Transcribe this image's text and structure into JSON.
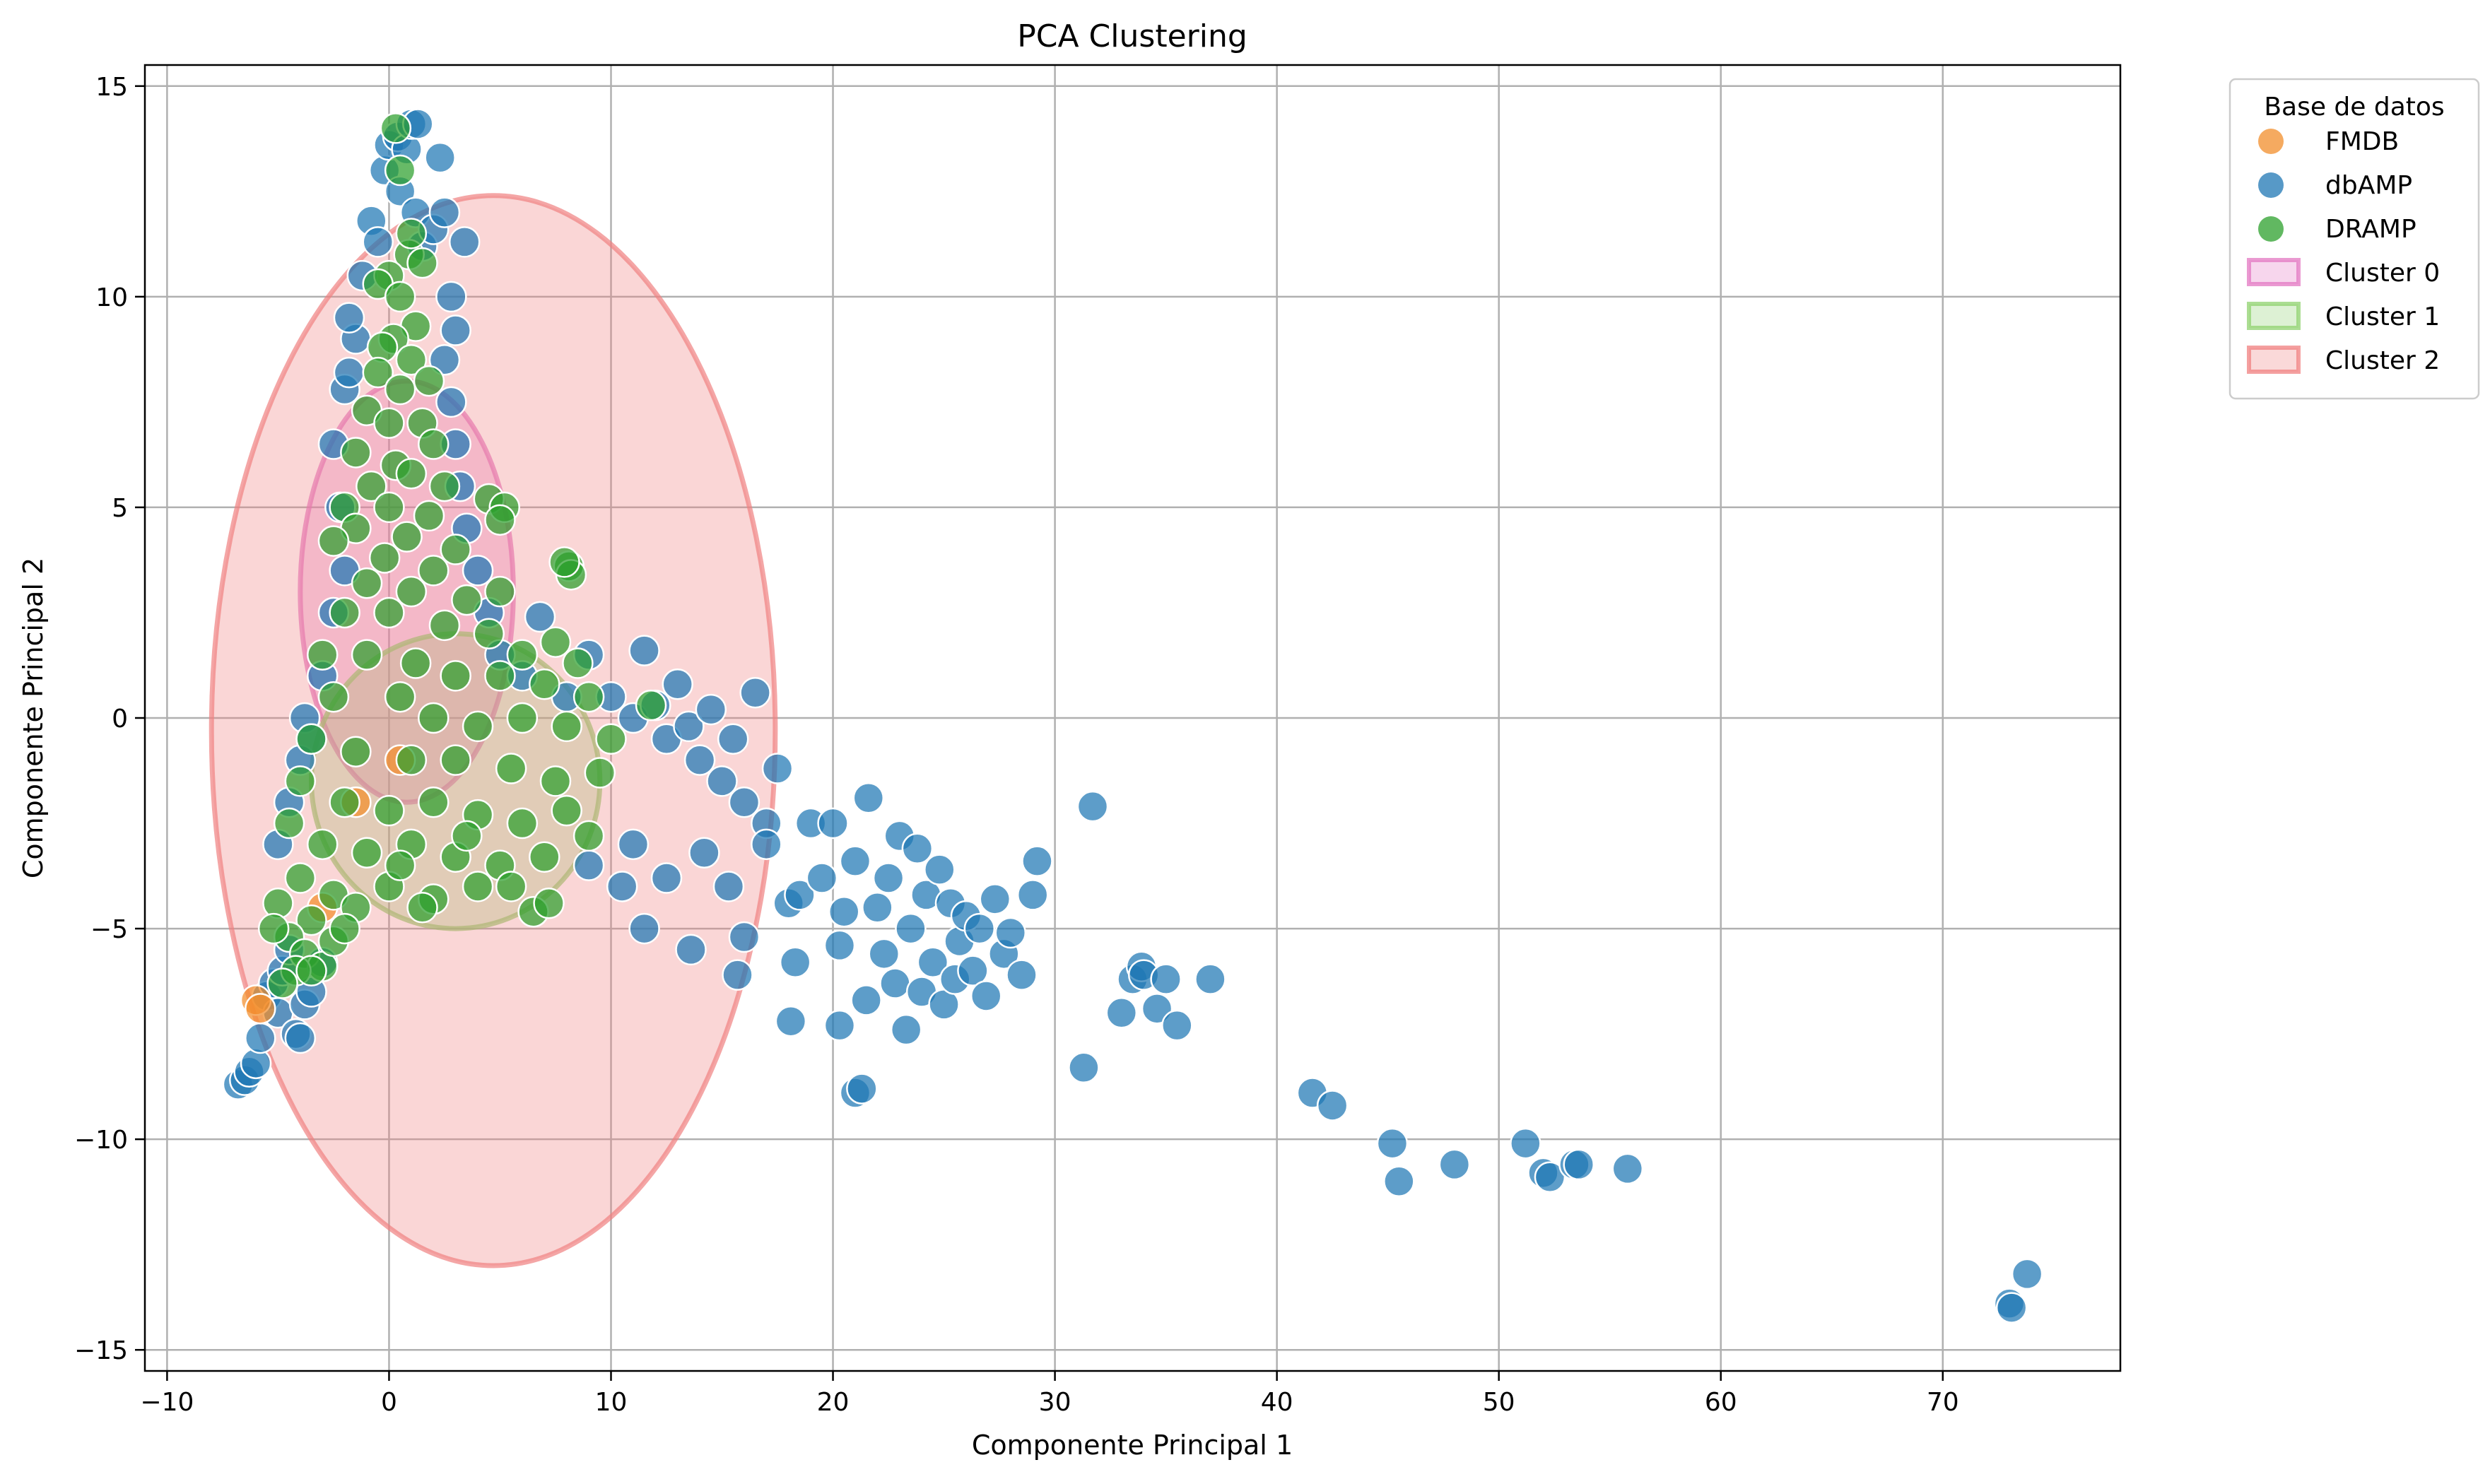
{
  "chart_data": {
    "type": "scatter",
    "title": "PCA Clustering",
    "xlabel": "Componente Principal 1",
    "ylabel": "Componente Principal 2",
    "xlim": [
      -11,
      78
    ],
    "ylim": [
      -15.5,
      15.5
    ],
    "xticks": [
      -10,
      0,
      10,
      20,
      30,
      40,
      50,
      60,
      70
    ],
    "yticks": [
      -15,
      -10,
      -5,
      0,
      5,
      10,
      15
    ],
    "grid": true,
    "legend": {
      "title": "Base de datos",
      "placement": "outside-top-right",
      "entries": [
        {
          "label": "FMDB",
          "kind": "point",
          "color": "#f28e2b"
        },
        {
          "label": "dbAMP",
          "kind": "point",
          "color": "#1f77b4"
        },
        {
          "label": "DRAMP",
          "kind": "point",
          "color": "#2ca02c"
        },
        {
          "label": "Cluster 0",
          "kind": "patch",
          "color": "#e377c2"
        },
        {
          "label": "Cluster 1",
          "kind": "patch",
          "color": "#8fd16f"
        },
        {
          "label": "Cluster 2",
          "kind": "patch",
          "color": "#f08080"
        }
      ]
    },
    "clusters": [
      {
        "name": "Cluster 0",
        "color": "#e377c2",
        "cx": 0.8,
        "cy": 3.0,
        "rx": 4.8,
        "ry": 5.0
      },
      {
        "name": "Cluster 1",
        "color": "#8fd16f",
        "cx": 3.0,
        "cy": -1.5,
        "rx": 6.5,
        "ry": 3.5
      },
      {
        "name": "Cluster 2",
        "color": "#f08080",
        "cx": 4.7,
        "cy": -0.3,
        "rx": 12.7,
        "ry": 12.7
      }
    ],
    "series": [
      {
        "name": "dbAMP",
        "color": "#1f77b4",
        "points": [
          [
            -6.8,
            -8.7
          ],
          [
            -6.5,
            -8.6
          ],
          [
            -6.3,
            -8.4
          ],
          [
            -6.0,
            -8.2
          ],
          [
            -5.8,
            -7.6
          ],
          [
            -5.5,
            -6.6
          ],
          [
            -5.2,
            -6.3
          ],
          [
            -5.0,
            -7.0
          ],
          [
            -4.8,
            -6.0
          ],
          [
            -4.5,
            -5.5
          ],
          [
            -4.2,
            -7.5
          ],
          [
            -4.0,
            -7.6
          ],
          [
            -3.8,
            -6.8
          ],
          [
            -3.5,
            -6.5
          ],
          [
            -3.0,
            -5.8
          ],
          [
            -5.0,
            -3.0
          ],
          [
            -4.5,
            -2.0
          ],
          [
            -4.0,
            -1.0
          ],
          [
            -3.8,
            0.0
          ],
          [
            -3.5,
            -0.5
          ],
          [
            -3.0,
            1.0
          ],
          [
            -2.5,
            2.5
          ],
          [
            -2.0,
            3.5
          ],
          [
            -2.2,
            5.0
          ],
          [
            -2.5,
            6.5
          ],
          [
            -2.0,
            7.8
          ],
          [
            -1.8,
            8.2
          ],
          [
            -1.5,
            9.0
          ],
          [
            -1.8,
            9.5
          ],
          [
            -1.2,
            10.5
          ],
          [
            -0.8,
            11.8
          ],
          [
            -0.5,
            11.3
          ],
          [
            -0.2,
            13.0
          ],
          [
            0.0,
            13.6
          ],
          [
            0.4,
            13.8
          ],
          [
            0.8,
            13.5
          ],
          [
            1.0,
            14.1
          ],
          [
            1.3,
            14.1
          ],
          [
            0.5,
            12.5
          ],
          [
            1.2,
            12.0
          ],
          [
            1.5,
            11.2
          ],
          [
            2.0,
            11.6
          ],
          [
            2.3,
            13.3
          ],
          [
            2.5,
            12.0
          ],
          [
            3.4,
            11.3
          ],
          [
            2.8,
            10.0
          ],
          [
            3.0,
            9.2
          ],
          [
            2.5,
            8.5
          ],
          [
            2.8,
            7.5
          ],
          [
            3.0,
            6.5
          ],
          [
            3.2,
            5.5
          ],
          [
            3.5,
            4.5
          ],
          [
            4.0,
            3.5
          ],
          [
            4.5,
            2.5
          ],
          [
            5.0,
            1.5
          ],
          [
            6.0,
            1.0
          ],
          [
            6.8,
            2.4
          ],
          [
            8.0,
            0.5
          ],
          [
            9.0,
            1.5
          ],
          [
            10.0,
            0.5
          ],
          [
            11.0,
            0.0
          ],
          [
            11.5,
            1.6
          ],
          [
            12.0,
            0.3
          ],
          [
            12.5,
            -0.5
          ],
          [
            13.0,
            0.8
          ],
          [
            13.5,
            -0.2
          ],
          [
            14.0,
            -1.0
          ],
          [
            14.5,
            0.2
          ],
          [
            15.0,
            -1.5
          ],
          [
            15.5,
            -0.5
          ],
          [
            16.0,
            -2.0
          ],
          [
            16.5,
            0.6
          ],
          [
            17.0,
            -2.5
          ],
          [
            13.6,
            -5.5
          ],
          [
            15.7,
            -6.1
          ],
          [
            11.5,
            -5.0
          ],
          [
            10.5,
            -4.0
          ],
          [
            9.0,
            -3.5
          ],
          [
            11.0,
            -3.0
          ],
          [
            12.5,
            -3.8
          ],
          [
            14.2,
            -3.2
          ],
          [
            15.3,
            -4.0
          ],
          [
            16.0,
            -5.2
          ],
          [
            17.0,
            -3.0
          ],
          [
            17.5,
            -1.2
          ],
          [
            18.0,
            -4.4
          ],
          [
            18.1,
            -7.2
          ],
          [
            18.3,
            -5.8
          ],
          [
            18.5,
            -4.2
          ],
          [
            19.0,
            -2.5
          ],
          [
            19.5,
            -3.8
          ],
          [
            20.0,
            -2.5
          ],
          [
            20.3,
            -5.4
          ],
          [
            20.3,
            -7.3
          ],
          [
            20.5,
            -4.6
          ],
          [
            21.0,
            -3.4
          ],
          [
            21.0,
            -8.9
          ],
          [
            21.3,
            -8.8
          ],
          [
            21.5,
            -6.7
          ],
          [
            21.6,
            -1.9
          ],
          [
            22.0,
            -4.5
          ],
          [
            22.3,
            -5.6
          ],
          [
            22.5,
            -3.8
          ],
          [
            22.8,
            -6.3
          ],
          [
            23.0,
            -2.8
          ],
          [
            23.3,
            -7.4
          ],
          [
            23.5,
            -5.0
          ],
          [
            23.8,
            -3.1
          ],
          [
            24.0,
            -6.5
          ],
          [
            24.2,
            -4.2
          ],
          [
            24.5,
            -5.8
          ],
          [
            24.8,
            -3.6
          ],
          [
            25.0,
            -6.8
          ],
          [
            25.3,
            -4.4
          ],
          [
            25.5,
            -6.2
          ],
          [
            25.7,
            -5.3
          ],
          [
            26.0,
            -4.7
          ],
          [
            26.3,
            -6.0
          ],
          [
            26.6,
            -5.0
          ],
          [
            26.9,
            -6.6
          ],
          [
            27.3,
            -4.3
          ],
          [
            27.7,
            -5.6
          ],
          [
            28.0,
            -5.1
          ],
          [
            28.5,
            -6.1
          ],
          [
            29.0,
            -4.2
          ],
          [
            29.2,
            -3.4
          ],
          [
            31.3,
            -8.3
          ],
          [
            31.7,
            -2.1
          ],
          [
            33.0,
            -7.0
          ],
          [
            33.5,
            -6.2
          ],
          [
            33.9,
            -5.9
          ],
          [
            34.0,
            -6.1
          ],
          [
            34.6,
            -6.9
          ],
          [
            35.0,
            -6.2
          ],
          [
            35.5,
            -7.3
          ],
          [
            37.0,
            -6.2
          ],
          [
            41.6,
            -8.9
          ],
          [
            42.5,
            -9.2
          ],
          [
            45.2,
            -10.1
          ],
          [
            45.5,
            -11.0
          ],
          [
            48.0,
            -10.6
          ],
          [
            51.2,
            -10.1
          ],
          [
            52.0,
            -10.8
          ],
          [
            52.3,
            -10.9
          ],
          [
            53.4,
            -10.6
          ],
          [
            53.6,
            -10.6
          ],
          [
            55.8,
            -10.7
          ],
          [
            73.0,
            -13.9
          ],
          [
            73.1,
            -14.0
          ],
          [
            73.8,
            -13.2
          ]
        ]
      },
      {
        "name": "FMDB",
        "color": "#f28e2b",
        "points": [
          [
            -6.0,
            -6.7
          ],
          [
            -5.8,
            -6.9
          ],
          [
            -3.0,
            -4.5
          ],
          [
            -1.5,
            -2.0
          ],
          [
            0.5,
            -1.0
          ]
        ]
      },
      {
        "name": "DRAMP",
        "color": "#2ca02c",
        "points": [
          [
            0.3,
            14.0
          ],
          [
            0.5,
            13.0
          ],
          [
            0.9,
            11.0
          ],
          [
            1.0,
            11.5
          ],
          [
            1.5,
            10.8
          ],
          [
            0.0,
            10.5
          ],
          [
            -0.5,
            10.3
          ],
          [
            0.5,
            10.0
          ],
          [
            1.2,
            9.3
          ],
          [
            0.2,
            9.0
          ],
          [
            -0.3,
            8.8
          ],
          [
            1.0,
            8.5
          ],
          [
            1.8,
            8.0
          ],
          [
            -0.5,
            8.2
          ],
          [
            0.5,
            7.8
          ],
          [
            -1.0,
            7.3
          ],
          [
            0.0,
            7.0
          ],
          [
            1.5,
            7.0
          ],
          [
            2.0,
            6.5
          ],
          [
            -1.5,
            6.3
          ],
          [
            0.3,
            6.0
          ],
          [
            1.0,
            5.8
          ],
          [
            -0.8,
            5.5
          ],
          [
            2.5,
            5.5
          ],
          [
            -2.0,
            5.0
          ],
          [
            0.0,
            5.0
          ],
          [
            1.8,
            4.8
          ],
          [
            4.5,
            5.2
          ],
          [
            5.2,
            5.0
          ],
          [
            5.0,
            4.7
          ],
          [
            -1.5,
            4.5
          ],
          [
            0.8,
            4.3
          ],
          [
            3.0,
            4.0
          ],
          [
            -2.5,
            4.2
          ],
          [
            -0.2,
            3.8
          ],
          [
            2.0,
            3.5
          ],
          [
            5.0,
            3.0
          ],
          [
            8.1,
            3.6
          ],
          [
            8.2,
            3.4
          ],
          [
            7.9,
            3.7
          ],
          [
            -1.0,
            3.2
          ],
          [
            1.0,
            3.0
          ],
          [
            3.5,
            2.8
          ],
          [
            -2.0,
            2.5
          ],
          [
            0.0,
            2.5
          ],
          [
            2.5,
            2.2
          ],
          [
            4.5,
            2.0
          ],
          [
            6.0,
            1.5
          ],
          [
            7.5,
            1.8
          ],
          [
            8.5,
            1.3
          ],
          [
            -3.0,
            1.5
          ],
          [
            -1.0,
            1.5
          ],
          [
            1.2,
            1.3
          ],
          [
            3.0,
            1.0
          ],
          [
            5.0,
            1.0
          ],
          [
            7.0,
            0.8
          ],
          [
            9.0,
            0.5
          ],
          [
            11.8,
            0.3
          ],
          [
            -2.5,
            0.5
          ],
          [
            0.5,
            0.5
          ],
          [
            2.0,
            0.0
          ],
          [
            4.0,
            -0.2
          ],
          [
            6.0,
            0.0
          ],
          [
            8.0,
            -0.2
          ],
          [
            10.0,
            -0.5
          ],
          [
            -3.5,
            -0.5
          ],
          [
            -1.5,
            -0.8
          ],
          [
            1.0,
            -1.0
          ],
          [
            3.0,
            -1.0
          ],
          [
            5.5,
            -1.2
          ],
          [
            7.5,
            -1.5
          ],
          [
            9.5,
            -1.3
          ],
          [
            -4.0,
            -1.5
          ],
          [
            -2.0,
            -2.0
          ],
          [
            0.0,
            -2.2
          ],
          [
            2.0,
            -2.0
          ],
          [
            4.0,
            -2.3
          ],
          [
            6.0,
            -2.5
          ],
          [
            8.0,
            -2.2
          ],
          [
            -4.5,
            -2.5
          ],
          [
            -3.0,
            -3.0
          ],
          [
            -1.0,
            -3.2
          ],
          [
            1.0,
            -3.0
          ],
          [
            3.0,
            -3.3
          ],
          [
            5.0,
            -3.5
          ],
          [
            7.0,
            -3.3
          ],
          [
            9.0,
            -2.8
          ],
          [
            -4.0,
            -3.8
          ],
          [
            -2.5,
            -4.2
          ],
          [
            0.0,
            -4.0
          ],
          [
            2.0,
            -4.3
          ],
          [
            4.0,
            -4.0
          ],
          [
            6.5,
            -4.6
          ],
          [
            7.2,
            -4.4
          ],
          [
            -5.0,
            -4.4
          ],
          [
            -3.5,
            -4.8
          ],
          [
            -1.5,
            -4.5
          ],
          [
            -4.5,
            -5.2
          ],
          [
            -3.8,
            -5.6
          ],
          [
            -3.0,
            -5.9
          ],
          [
            -4.2,
            -6.0
          ],
          [
            -2.5,
            -5.3
          ],
          [
            -4.8,
            -6.3
          ],
          [
            -3.5,
            -6.0
          ],
          [
            1.5,
            -4.5
          ],
          [
            5.5,
            -4.0
          ],
          [
            -5.2,
            -5.0
          ],
          [
            -2.0,
            -5.0
          ],
          [
            0.5,
            -3.5
          ],
          [
            3.5,
            -2.8
          ]
        ]
      }
    ]
  }
}
